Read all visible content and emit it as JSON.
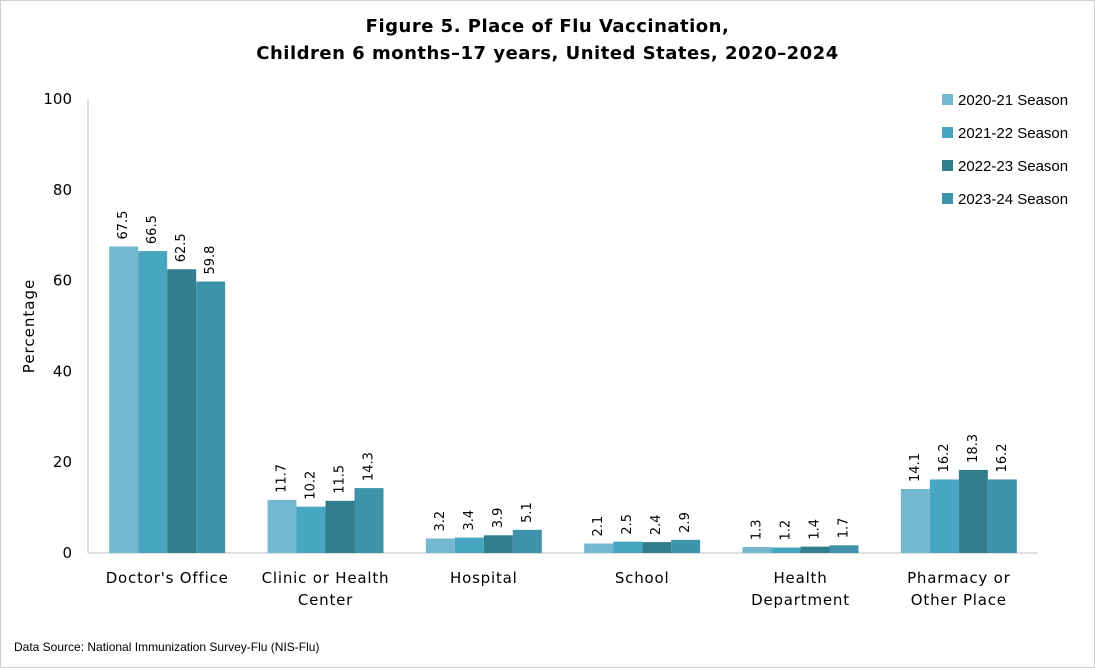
{
  "chart_data": {
    "type": "bar",
    "title": "Figure 5. Place of Flu Vaccination,",
    "subtitle": "Children 6 months–17 years, United States, 2020–2024",
    "xlabel": "",
    "ylabel": "Percentage",
    "ylim": [
      0,
      100
    ],
    "yticks": [
      "0",
      "20",
      "40",
      "60",
      "80",
      "100"
    ],
    "grid": false,
    "legend_position": "top-right",
    "categories": [
      [
        "Doctor's Office"
      ],
      [
        "Clinic or Health",
        "Center"
      ],
      [
        "Hospital"
      ],
      [
        "School"
      ],
      [
        "Health",
        "Department"
      ],
      [
        "Pharmacy or",
        "Other Place"
      ]
    ],
    "series": [
      {
        "name": "2020-21 Season",
        "color": "#74b8cf",
        "values": [
          67.5,
          11.7,
          3.2,
          2.1,
          1.3,
          14.1
        ],
        "labels": [
          "67.5",
          "11.7",
          "3.2",
          "2.1",
          "1.3",
          "14.1"
        ]
      },
      {
        "name": "2021-22 Season",
        "color": "#47a6c1",
        "values": [
          66.5,
          10.2,
          3.4,
          2.5,
          1.2,
          16.2
        ],
        "labels": [
          "66.5",
          "10.2",
          "3.4",
          "2.5",
          "1.2",
          "16.2"
        ]
      },
      {
        "name": "2022-23 Season",
        "color": "#327d8e",
        "values": [
          62.5,
          11.5,
          3.9,
          2.4,
          1.4,
          18.3
        ],
        "labels": [
          "62.5",
          "11.5",
          "3.9",
          "2.4",
          "1.4",
          "18.3"
        ]
      },
      {
        "name": "2023-24 Season",
        "color": "#3e93aa",
        "values": [
          59.8,
          14.3,
          5.1,
          2.9,
          1.7,
          16.2
        ],
        "labels": [
          "59.8",
          "14.3",
          "5.1",
          "2.9",
          "1.7",
          "16.2"
        ]
      }
    ]
  },
  "footer": {
    "source": "Data Source: National Immunization Survey-Flu (NIS-Flu)"
  }
}
